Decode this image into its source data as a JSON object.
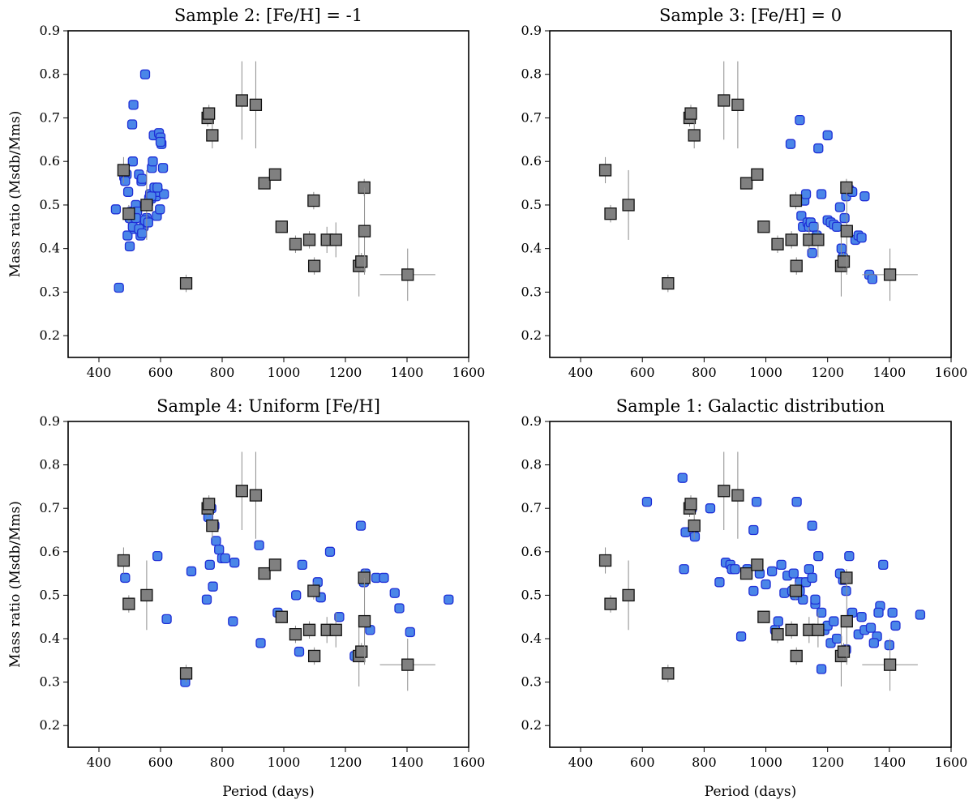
{
  "figure": {
    "xlabel": "Period (days)",
    "ylabel": "Mass ratio (Msdb/Mms)",
    "observed_color": "#808080",
    "simulated_color": "#4a86e8",
    "simulated_edge": "#1f2fd6"
  },
  "chart_data": [
    {
      "type": "scatter",
      "title": "Sample 2:  [Fe/H] = -1",
      "xlabel": "",
      "ylabel": "Mass ratio (Msdb/Mms)",
      "xlim": [
        300,
        1600
      ],
      "ylim": [
        0.15,
        0.9
      ],
      "xticks": [
        400,
        600,
        800,
        1000,
        1200,
        1400,
        1600
      ],
      "yticks": [
        0.2,
        0.3,
        0.4,
        0.5,
        0.6,
        0.7,
        0.8,
        0.9
      ],
      "series": [
        {
          "x": [
            455,
            465,
            482,
            490,
            485,
            495,
            500,
            493,
            500,
            505,
            508,
            512,
            510,
            515,
            520,
            524,
            530,
            532,
            535,
            538,
            540,
            545,
            550,
            552,
            555,
            558,
            560,
            563,
            566,
            570,
            572,
            575,
            578,
            582,
            585,
            588,
            592,
            595,
            598,
            600,
            603,
            608,
            611,
            500,
            510,
            520,
            530,
            540,
            550,
            560,
            570,
            580,
            590,
            600
          ],
          "y": [
            0.49,
            0.31,
            0.565,
            0.57,
            0.555,
            0.53,
            0.47,
            0.43,
            0.405,
            0.485,
            0.685,
            0.73,
            0.6,
            0.445,
            0.5,
            0.485,
            0.57,
            0.445,
            0.43,
            0.555,
            0.56,
            0.45,
            0.8,
            0.46,
            0.47,
            0.5,
            0.505,
            0.515,
            0.525,
            0.515,
            0.585,
            0.6,
            0.66,
            0.53,
            0.52,
            0.475,
            0.53,
            0.665,
            0.49,
            0.655,
            0.64,
            0.585,
            0.525,
            0.47,
            0.45,
            0.47,
            0.445,
            0.435,
            0.465,
            0.46,
            0.52,
            0.54,
            0.54,
            0.645
          ]
        }
      ]
    },
    {
      "type": "scatter",
      "title": "Sample 3:  [Fe/H] = 0",
      "xlabel": "",
      "ylabel": "",
      "xlim": [
        300,
        1600
      ],
      "ylim": [
        0.15,
        0.9
      ],
      "xticks": [
        400,
        600,
        800,
        1000,
        1200,
        1400,
        1600
      ],
      "yticks": [
        0.2,
        0.3,
        0.4,
        0.5,
        0.6,
        0.7,
        0.8,
        0.9
      ],
      "series": [
        {
          "x": [
            1080,
            1110,
            1200,
            1170,
            1180,
            1105,
            1115,
            1120,
            1125,
            1130,
            1135,
            1140,
            1145,
            1150,
            1155,
            1160,
            1165,
            1200,
            1210,
            1220,
            1230,
            1240,
            1245,
            1250,
            1255,
            1260,
            1270,
            1280,
            1290,
            1300,
            1310,
            1320,
            1335,
            1345
          ],
          "y": [
            0.64,
            0.695,
            0.66,
            0.63,
            0.525,
            0.51,
            0.475,
            0.45,
            0.51,
            0.525,
            0.46,
            0.45,
            0.46,
            0.39,
            0.45,
            0.42,
            0.43,
            0.465,
            0.46,
            0.455,
            0.45,
            0.495,
            0.4,
            0.38,
            0.47,
            0.52,
            0.535,
            0.53,
            0.42,
            0.43,
            0.425,
            0.52,
            0.34,
            0.33
          ]
        }
      ]
    },
    {
      "type": "scatter",
      "title": "Sample 4:  Uniform [Fe/H]",
      "xlabel": "Period (days)",
      "ylabel": "Mass ratio (Msdb/Mms)",
      "xlim": [
        300,
        1600
      ],
      "ylim": [
        0.15,
        0.9
      ],
      "xticks": [
        400,
        600,
        800,
        1000,
        1200,
        1400,
        1600
      ],
      "yticks": [
        0.2,
        0.3,
        0.4,
        0.5,
        0.6,
        0.7,
        0.8,
        0.9
      ],
      "series": [
        {
          "x": [
            485,
            590,
            620,
            680,
            700,
            750,
            760,
            770,
            780,
            790,
            800,
            810,
            835,
            840,
            920,
            925,
            980,
            1040,
            1050,
            1060,
            1100,
            1110,
            1120,
            1150,
            1180,
            1230,
            1250,
            1260,
            1265,
            1280,
            1300,
            1325,
            1360,
            1375,
            1410,
            1535,
            755,
            765,
            775,
            1120
          ],
          "y": [
            0.54,
            0.59,
            0.445,
            0.3,
            0.555,
            0.49,
            0.57,
            0.52,
            0.625,
            0.605,
            0.585,
            0.585,
            0.44,
            0.575,
            0.615,
            0.39,
            0.46,
            0.5,
            0.37,
            0.57,
            0.51,
            0.53,
            0.495,
            0.6,
            0.45,
            0.36,
            0.66,
            0.53,
            0.55,
            0.42,
            0.54,
            0.54,
            0.505,
            0.47,
            0.415,
            0.49,
            0.68,
            0.7,
            0.66,
            0.495
          ]
        }
      ]
    },
    {
      "type": "scatter",
      "title": "Sample 1:  Galactic distribution",
      "xlabel": "Period (days)",
      "ylabel": "",
      "xlim": [
        300,
        1600
      ],
      "ylim": [
        0.15,
        0.9
      ],
      "xticks": [
        400,
        600,
        800,
        1000,
        1200,
        1400,
        1600
      ],
      "yticks": [
        0.2,
        0.3,
        0.4,
        0.5,
        0.6,
        0.7,
        0.8,
        0.9
      ],
      "series": [
        {
          "x": [
            615,
            730,
            735,
            760,
            770,
            820,
            850,
            870,
            885,
            890,
            900,
            920,
            940,
            960,
            970,
            980,
            990,
            1020,
            1030,
            1040,
            1050,
            1060,
            1070,
            1085,
            1095,
            1100,
            1110,
            1120,
            1130,
            1140,
            1150,
            1160,
            1170,
            1180,
            1190,
            1200,
            1210,
            1220,
            1230,
            1250,
            1260,
            1270,
            1280,
            1300,
            1320,
            1340,
            1360,
            1370,
            1380,
            1400,
            1410,
            1420,
            1500,
            740,
            960,
            1000,
            1040,
            1090,
            1110,
            1150,
            1160,
            1180,
            1240,
            1260,
            1310,
            1350,
            1365
          ],
          "y": [
            0.715,
            0.77,
            0.56,
            0.7,
            0.635,
            0.7,
            0.53,
            0.575,
            0.57,
            0.56,
            0.56,
            0.405,
            0.56,
            0.65,
            0.715,
            0.55,
            0.45,
            0.555,
            0.42,
            0.44,
            0.57,
            0.505,
            0.545,
            0.51,
            0.5,
            0.715,
            0.53,
            0.49,
            0.53,
            0.56,
            0.66,
            0.48,
            0.59,
            0.33,
            0.42,
            0.43,
            0.39,
            0.44,
            0.4,
            0.535,
            0.375,
            0.59,
            0.46,
            0.41,
            0.42,
            0.425,
            0.405,
            0.475,
            0.57,
            0.385,
            0.46,
            0.43,
            0.455,
            0.645,
            0.51,
            0.525,
            0.41,
            0.55,
            0.51,
            0.54,
            0.49,
            0.46,
            0.55,
            0.51,
            0.45,
            0.39,
            0.46
          ]
        }
      ]
    }
  ],
  "observed": {
    "points": [
      {
        "x": 480,
        "y": 0.58,
        "xerr": [
          0,
          0
        ],
        "yerr": [
          0.03,
          0.03
        ]
      },
      {
        "x": 497,
        "y": 0.48,
        "xerr": [
          0,
          0
        ],
        "yerr": [
          0.02,
          0.02
        ]
      },
      {
        "x": 555,
        "y": 0.5,
        "xerr": [
          0,
          0
        ],
        "yerr": [
          0.08,
          0.08
        ]
      },
      {
        "x": 683,
        "y": 0.32,
        "xerr": [
          15,
          15
        ],
        "yerr": [
          0.02,
          0.02
        ]
      },
      {
        "x": 753,
        "y": 0.7,
        "xerr": [
          0,
          0
        ],
        "yerr": [
          0.02,
          0.02
        ]
      },
      {
        "x": 757,
        "y": 0.71,
        "xerr": [
          0,
          0
        ],
        "yerr": [
          0.02,
          0.02
        ]
      },
      {
        "x": 768,
        "y": 0.66,
        "xerr": [
          0,
          0
        ],
        "yerr": [
          0.03,
          0.03
        ]
      },
      {
        "x": 864,
        "y": 0.74,
        "xerr": [
          0,
          0
        ],
        "yerr": [
          0.09,
          0.09
        ]
      },
      {
        "x": 909,
        "y": 0.73,
        "xerr": [
          0,
          0
        ],
        "yerr": [
          0.1,
          0.1
        ]
      },
      {
        "x": 937,
        "y": 0.55,
        "xerr": [
          0,
          0
        ],
        "yerr": [
          0.01,
          0.01
        ]
      },
      {
        "x": 972,
        "y": 0.57,
        "xerr": [
          0,
          0
        ],
        "yerr": [
          0.01,
          0.01
        ]
      },
      {
        "x": 993,
        "y": 0.45,
        "xerr": [
          0,
          0
        ],
        "yerr": [
          0.01,
          0.01
        ]
      },
      {
        "x": 1038,
        "y": 0.41,
        "xerr": [
          0,
          0
        ],
        "yerr": [
          0.02,
          0.02
        ]
      },
      {
        "x": 1083,
        "y": 0.42,
        "xerr": [
          0,
          0
        ],
        "yerr": [
          0.02,
          0.02
        ]
      },
      {
        "x": 1097,
        "y": 0.51,
        "xerr": [
          0,
          0
        ],
        "yerr": [
          0.02,
          0.02
        ]
      },
      {
        "x": 1099,
        "y": 0.36,
        "xerr": [
          0,
          0
        ],
        "yerr": [
          0.02,
          0.02
        ]
      },
      {
        "x": 1140,
        "y": 0.42,
        "xerr": [
          0,
          0
        ],
        "yerr": [
          0.03,
          0.03
        ]
      },
      {
        "x": 1169,
        "y": 0.42,
        "xerr": [
          0,
          0
        ],
        "yerr": [
          0.04,
          0.04
        ]
      },
      {
        "x": 1244,
        "y": 0.36,
        "xerr": [
          0,
          0
        ],
        "yerr": [
          0.07,
          0.07
        ]
      },
      {
        "x": 1252,
        "y": 0.37,
        "xerr": [
          0,
          0
        ],
        "yerr": [
          0.02,
          0.02
        ]
      },
      {
        "x": 1261,
        "y": 0.54,
        "xerr": [
          0,
          0
        ],
        "yerr": [
          0.02,
          0.02
        ]
      },
      {
        "x": 1262,
        "y": 0.44,
        "xerr": [
          0,
          0
        ],
        "yerr": [
          0.1,
          0.1
        ]
      },
      {
        "x": 1402,
        "y": 0.34,
        "xerr": [
          90,
          90
        ],
        "yerr": [
          0.06,
          0.06
        ]
      }
    ]
  }
}
